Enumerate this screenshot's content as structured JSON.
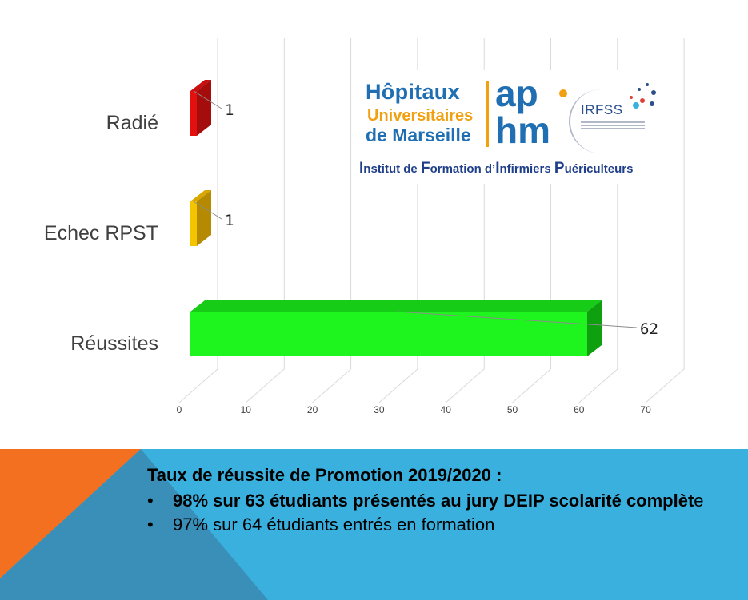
{
  "chart_data": {
    "type": "bar",
    "orientation": "horizontal",
    "categories": [
      "Radié",
      "Echec RPST",
      "Réussites"
    ],
    "values": [
      1,
      1,
      62
    ],
    "data_labels": [
      "1",
      "1",
      "62"
    ],
    "x_ticks": [
      "0",
      "10",
      "20",
      "30",
      "40",
      "50",
      "60",
      "70"
    ],
    "xlim": [
      0,
      70
    ],
    "grid": true,
    "bar_colors": [
      "#e31010",
      "#f5c400",
      "#1ef51e"
    ],
    "bar_side_colors": [
      "#a50d0d",
      "#b58a00",
      "#0fa00f"
    ],
    "bar_top_colors": [
      "#c80f0f",
      "#d8a800",
      "#16cc16"
    ],
    "title": "",
    "xlabel": "",
    "ylabel": ""
  },
  "logo": {
    "line1": "Hôpitaux",
    "line2": "Universitaires",
    "line3": "de Marseille",
    "ap": "ap",
    "hm": "hm",
    "irfss": "IRFSS",
    "institut": [
      {
        "cap": "I",
        "rest": "nstitut de "
      },
      {
        "cap": "F",
        "rest": "ormation d’"
      },
      {
        "cap": "I",
        "rest": "nfirmiers "
      },
      {
        "cap": "P",
        "rest": "uériculteurs"
      }
    ]
  },
  "footer": {
    "title": "Taux de réussite de Promotion 2019/2020 :",
    "bullet": "•",
    "item1_bold": "98% sur 63 étudiants présentés au jury DEIP scolarité complèt",
    "item1_tail": "e",
    "item2": "97% sur 64 étudiants entrés en formation",
    "colors": {
      "blue": "#3ab0de",
      "orange": "#f37021",
      "steel": "#3a8fb8"
    }
  }
}
